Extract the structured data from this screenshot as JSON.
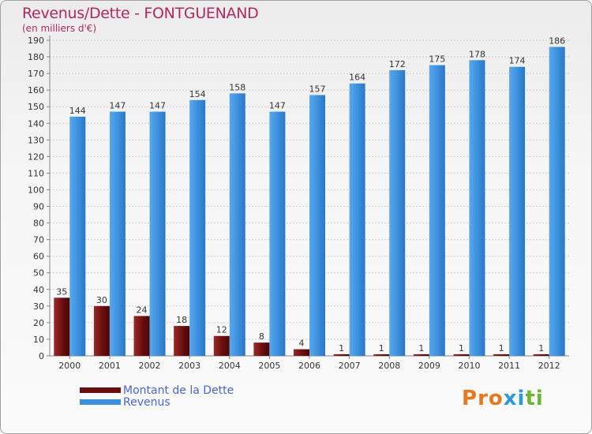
{
  "header": {
    "title": "Revenus/Dette - FONTGUENAND",
    "subtitle": "(en milliers d'€)"
  },
  "logo": {
    "letters": [
      "P",
      "r",
      "o",
      "x",
      "i",
      "t",
      "i"
    ],
    "colors": [
      "#e8781e",
      "#e8781e",
      "#e8781e",
      "#2a9ad8",
      "#2a9ad8",
      "#6ab534",
      "#6ab534"
    ]
  },
  "chart_data": {
    "type": "bar",
    "categories": [
      "2000",
      "2001",
      "2002",
      "2003",
      "2004",
      "2005",
      "2006",
      "2007",
      "2008",
      "2009",
      "2010",
      "2011",
      "2012"
    ],
    "series": [
      {
        "name": "Montant de la Dette",
        "color": "#6b0e0e",
        "values": [
          35,
          30,
          24,
          18,
          12,
          8,
          4,
          1,
          1,
          1,
          1,
          1,
          1
        ]
      },
      {
        "name": "Revenus",
        "color": "#3b8fdd",
        "values": [
          144,
          147,
          147,
          154,
          158,
          147,
          157,
          164,
          172,
          175,
          178,
          174,
          186
        ]
      }
    ],
    "ylim": [
      0,
      190
    ],
    "yticks": [
      0,
      10,
      20,
      30,
      40,
      50,
      60,
      70,
      80,
      90,
      100,
      110,
      120,
      130,
      140,
      150,
      160,
      170,
      180,
      190
    ],
    "grid": true,
    "legend_position": "bottom-left"
  }
}
